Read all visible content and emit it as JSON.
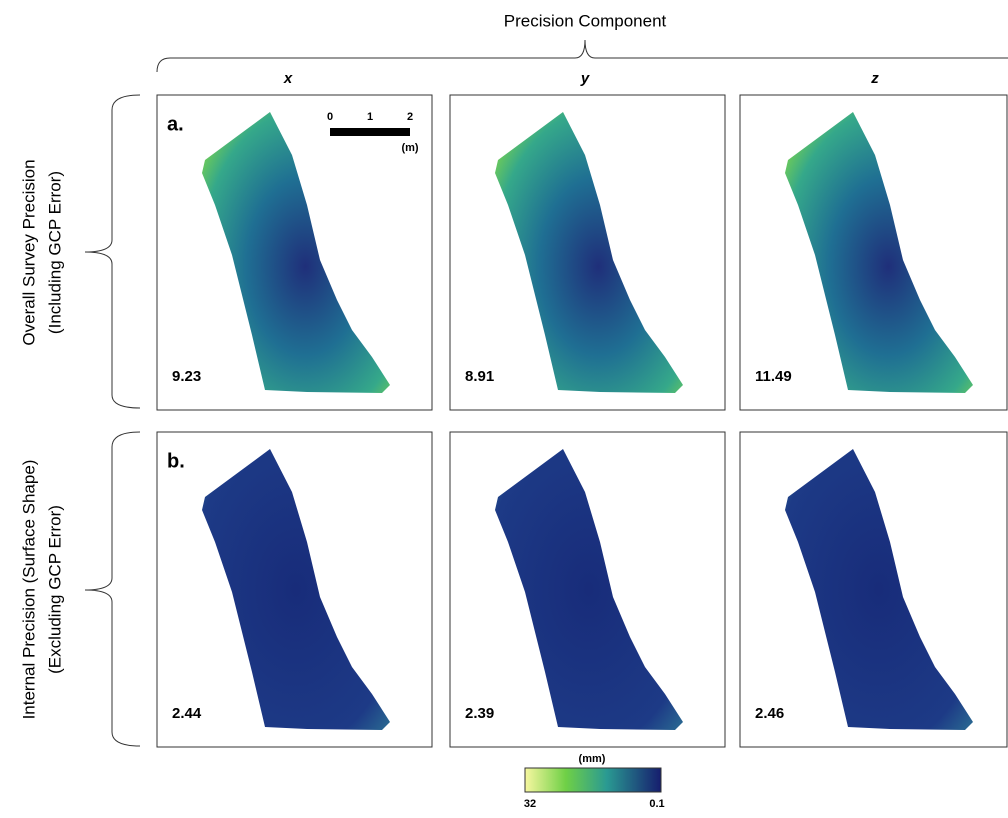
{
  "header": {
    "title": "Precision Component",
    "columns": [
      "x",
      "y",
      "z"
    ]
  },
  "rows": [
    {
      "label_line1": "Overall Survey Precision",
      "label_line2": "(Including GCP Error)",
      "panel_label": "a.",
      "values": [
        "9.23",
        "8.91",
        "11.49"
      ]
    },
    {
      "label_line1": "Internal Precision (Surface Shape)",
      "label_line2": "(Excluding GCP Error)",
      "panel_label": "b.",
      "values": [
        "2.44",
        "2.39",
        "2.46"
      ]
    }
  ],
  "scale_bar": {
    "ticks": [
      "0",
      "1",
      "2"
    ],
    "unit": "(m)"
  },
  "colorbar": {
    "unit": "(mm)",
    "min_label": "32",
    "max_label": "0.1"
  }
}
